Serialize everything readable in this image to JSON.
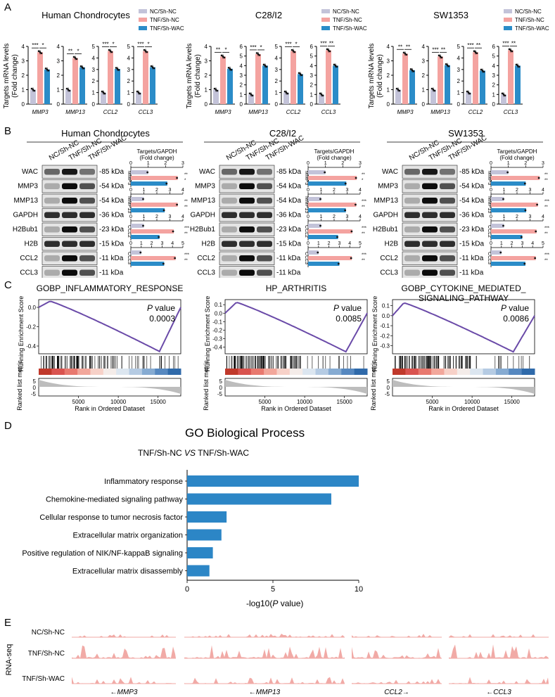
{
  "colors": {
    "nc": "#c3c3d9",
    "tnf_nc": "#f4a3a0",
    "tnf_wac": "#2b8cc8",
    "gsea_line": "#6a4aa8",
    "go_bar": "#2c86c6",
    "track": "#f1aaa6"
  },
  "panels": {
    "a": "A",
    "b": "B",
    "c": "C",
    "d": "D",
    "e": "E"
  },
  "legend": [
    "NC/Sh-NC",
    "TNF/Sh-NC",
    "TNF/Sh-WAC"
  ],
  "panelA": {
    "ylabel_line1": "Targets mRNA levels",
    "ylabel_line2": "(Fold change)",
    "groups": [
      {
        "title": "Human Chondrocytes",
        "charts": [
          {
            "gene": "MMP3",
            "ymax": 4,
            "ticks": [
              "0",
              "1",
              "2",
              "3",
              "4"
            ],
            "values": [
              1,
              3.6,
              2.4
            ],
            "sig": [
              "***",
              "*"
            ]
          },
          {
            "gene": "MMP13",
            "ymax": 4,
            "ticks": [
              "0",
              "1",
              "2",
              "3",
              "4"
            ],
            "values": [
              1,
              3.2,
              2.55
            ],
            "sig": [
              "**",
              "*"
            ]
          },
          {
            "gene": "CCL2",
            "ymax": 5,
            "ticks": [
              "0",
              "1",
              "2",
              "3",
              "4",
              "5"
            ],
            "values": [
              1,
              4.6,
              3.05
            ],
            "sig": [
              "***",
              "*"
            ]
          },
          {
            "gene": "CCL3",
            "ymax": 5,
            "ticks": [
              "0",
              "1",
              "2",
              "3",
              "4",
              "5"
            ],
            "values": [
              1,
              4.6,
              3.2
            ],
            "sig": [
              "***",
              "*"
            ]
          }
        ]
      },
      {
        "title": "C28/I2",
        "charts": [
          {
            "gene": "MMP3",
            "ymax": 4,
            "ticks": [
              "0",
              "1",
              "2",
              "3",
              "4"
            ],
            "values": [
              1,
              3.3,
              2.45
            ],
            "sig": [
              "**",
              "*"
            ]
          },
          {
            "gene": "MMP13",
            "ymax": 6,
            "ticks": [
              "0",
              "1",
              "2",
              "3",
              "4",
              "5",
              "6"
            ],
            "values": [
              1,
              5.2,
              4.0
            ],
            "sig": [
              "***",
              "*"
            ]
          },
          {
            "gene": "CCL2",
            "ymax": 5,
            "ticks": [
              "0",
              "1",
              "2",
              "3",
              "4",
              "5"
            ],
            "values": [
              1,
              4.6,
              2.6
            ],
            "sig": [
              "***",
              "*"
            ]
          },
          {
            "gene": "CCL3",
            "ymax": 6,
            "ticks": [
              "0",
              "1",
              "2",
              "3",
              "4",
              "5",
              "6"
            ],
            "values": [
              1,
              5.6,
              4.0
            ],
            "sig": [
              "***",
              "**"
            ]
          }
        ]
      },
      {
        "title": "SW1353",
        "charts": [
          {
            "gene": "MMP3",
            "ymax": 4,
            "ticks": [
              "0",
              "1",
              "2",
              "3",
              "4"
            ],
            "values": [
              1,
              3.5,
              2.35
            ],
            "sig": [
              "**",
              "**"
            ]
          },
          {
            "gene": "MMP13",
            "ymax": 4,
            "ticks": [
              "0",
              "1",
              "2",
              "3",
              "4"
            ],
            "values": [
              1,
              3.3,
              2.7
            ],
            "sig": [
              "***",
              "**"
            ]
          },
          {
            "gene": "CCL2",
            "ymax": 5,
            "ticks": [
              "0",
              "1",
              "2",
              "3",
              "4",
              "5"
            ],
            "values": [
              1,
              4.5,
              2.9
            ],
            "sig": [
              "***",
              "**"
            ]
          },
          {
            "gene": "CCL3",
            "ymax": 6,
            "ticks": [
              "0",
              "1",
              "2",
              "3",
              "4",
              "5",
              "6"
            ],
            "values": [
              1,
              5.6,
              4.0
            ],
            "sig": [
              "***",
              "**"
            ]
          }
        ]
      }
    ]
  },
  "panelB": {
    "lanes": [
      "NC/Sh-NC",
      "TNF/Sh-NC",
      "TNF/Sh-WAC"
    ],
    "quant_title_line1": "Targets/GAPDH",
    "quant_title_line2": "(Fold change)",
    "groups": [
      {
        "title": "Human Chondrocytes",
        "blots": [
          {
            "name": "WAC",
            "kda": "-85 kDa"
          },
          {
            "name": "MMP3",
            "kda": "-54 kDa"
          },
          {
            "name": "MMP13",
            "kda": "-54 kDa"
          },
          {
            "name": "GAPDH",
            "kda": "-36 kDa"
          },
          {
            "name": "H2Bub1",
            "kda": "-23 kDa"
          },
          {
            "name": "H2B",
            "kda": "-15 kDa"
          },
          {
            "name": "CCL2",
            "kda": "-11 kDa"
          },
          {
            "name": "CCL3",
            "kda": "-11 kDa"
          }
        ],
        "quant": [
          {
            "gene": "MMP3",
            "ticks": [
              "0",
              "1",
              "2",
              "3"
            ],
            "max": 3,
            "values": [
              1,
              2.7,
              2.1
            ],
            "sig": [
              "**",
              "*"
            ]
          },
          {
            "gene": "MMP13",
            "ticks": [
              "0",
              "1",
              "2",
              "3",
              "4"
            ],
            "max": 4,
            "values": [
              1,
              3.6,
              2.6
            ],
            "sig": [
              "**",
              "**"
            ]
          },
          {
            "gene": "CCL2",
            "ticks": [
              "0",
              "1",
              "2",
              "3",
              "4"
            ],
            "max": 4,
            "values": [
              1,
              3.3,
              2.2
            ],
            "sig": [
              "***",
              "**"
            ]
          },
          {
            "gene": "CCL3",
            "ticks": [
              "0",
              "1",
              "2",
              "3",
              "4",
              "5"
            ],
            "max": 5,
            "values": [
              1,
              4.3,
              3.2
            ],
            "sig": [
              "***",
              "**"
            ]
          }
        ]
      },
      {
        "title": "C28/I2",
        "blots": [
          {
            "name": "WAC",
            "kda": "-85 kDa"
          },
          {
            "name": "MMP3",
            "kda": "-54 kDa"
          },
          {
            "name": "MMP13",
            "kda": "-54 kDa"
          },
          {
            "name": "GAPDH",
            "kda": "-36 kDa"
          },
          {
            "name": "H2Bub1",
            "kda": "-23 kDa"
          },
          {
            "name": "H2B",
            "kda": "-15 kDa"
          },
          {
            "name": "CCL2",
            "kda": "-11 kDa"
          },
          {
            "name": "CCL3",
            "kda": "-11 kDa"
          }
        ],
        "quant": [
          {
            "gene": "MMP3",
            "ticks": [
              "0",
              "1",
              "2",
              "3"
            ],
            "max": 3,
            "values": [
              1,
              2.8,
              2.2
            ],
            "sig": [
              "**",
              "*"
            ]
          },
          {
            "gene": "MMP13",
            "ticks": [
              "0",
              "1",
              "2",
              "3",
              "4"
            ],
            "max": 4,
            "values": [
              1,
              3.7,
              2.9
            ],
            "sig": [
              "***",
              "**"
            ]
          },
          {
            "gene": "CCL2",
            "ticks": [
              "0",
              "1",
              "2",
              "3",
              "4"
            ],
            "max": 4,
            "values": [
              1,
              3.4,
              2.3
            ],
            "sig": [
              "***",
              "**"
            ]
          },
          {
            "gene": "CCL3",
            "ticks": [
              "0",
              "1",
              "2",
              "3",
              "4",
              "5"
            ],
            "max": 5,
            "values": [
              1,
              4.2,
              3.0
            ],
            "sig": [
              "***",
              "**"
            ]
          }
        ]
      },
      {
        "title": "SW1353",
        "blots": [
          {
            "name": "WAC",
            "kda": "-85 kDa"
          },
          {
            "name": "MMP3",
            "kda": "-54 kDa"
          },
          {
            "name": "MMP13",
            "kda": "-54 kDa"
          },
          {
            "name": "GAPDH",
            "kda": "-36 kDa"
          },
          {
            "name": "H2Bub1",
            "kda": "-23 kDa"
          },
          {
            "name": "H2B",
            "kda": "-15 kDa"
          },
          {
            "name": "CCL2",
            "kda": "-11 kDa"
          },
          {
            "name": "CCL3",
            "kda": "-11 kDa"
          }
        ],
        "quant": [
          {
            "gene": "MMP3",
            "ticks": [
              "0",
              "1",
              "2",
              "3"
            ],
            "max": 3,
            "values": [
              1,
              2.8,
              2.0
            ],
            "sig": [
              "**",
              "**"
            ]
          },
          {
            "gene": "MMP13",
            "ticks": [
              "0",
              "1",
              "2",
              "3",
              "4"
            ],
            "max": 4,
            "values": [
              1,
              3.6,
              2.7
            ],
            "sig": [
              "***",
              "**"
            ]
          },
          {
            "gene": "CCL2",
            "ticks": [
              "0",
              "1",
              "2",
              "3",
              "4"
            ],
            "max": 4,
            "values": [
              1,
              3.5,
              2.4
            ],
            "sig": [
              "***",
              "**"
            ]
          },
          {
            "gene": "CCL3",
            "ticks": [
              "0",
              "1",
              "2",
              "3",
              "4",
              "5"
            ],
            "max": 5,
            "values": [
              1,
              4.3,
              3.3
            ],
            "sig": [
              "***",
              "**"
            ]
          }
        ]
      }
    ]
  },
  "panelC": {
    "ylabel_top": "Running Enrichment Score",
    "ylabel_bottom": "Ranked list metric",
    "xlabel": "Rank in Ordered Dataset",
    "xticks": [
      "5000",
      "10000",
      "15000"
    ],
    "metric_ticks": [
      "5",
      "0",
      "-5"
    ],
    "p_label": "P",
    "p_suffix": " value",
    "plots": [
      {
        "title_line1": "GOBP_INFLAMMATORY_RESPONSE",
        "title_line2": "",
        "p": "0.0003",
        "yticks": [
          "0.0",
          "-0.2",
          "-0.4"
        ],
        "ymin": -0.48,
        "ymax": 0.08
      },
      {
        "title_line1": "HP_ARTHRITIS",
        "title_line2": "",
        "p": "0.0085",
        "yticks": [
          "0.1",
          "0.0",
          "-0.1",
          "-0.2",
          "-0.3",
          "-0.4"
        ],
        "ymin": -0.48,
        "ymax": 0.16
      },
      {
        "title_line1": "GOBP_CYTOKINE_MEDIATED_",
        "title_line2": "SIGNALING_PATHWAY",
        "p": "0.0086",
        "yticks": [
          "0.1",
          "0.0",
          "-0.1",
          "-0.2",
          "-0.3"
        ],
        "ymin": -0.38,
        "ymax": 0.16
      }
    ]
  },
  "chart_data": {
    "type": "bar",
    "orientation": "horizontal",
    "title": "GO Biological Process",
    "subtitle_left": "TNF/Sh-NC ",
    "subtitle_vs": "VS",
    "subtitle_right": " TNF/Sh-WAC",
    "categories": [
      "Inflammatory response",
      "Chemokine-mediated signaling pathway",
      "Cellular response to tumor necrosis factor",
      "Extracellular matrix organization",
      "Positive regulation of NIK/NF-kappaB signaling",
      "Extracellular matrix disassembly"
    ],
    "values": [
      10.0,
      8.4,
      2.3,
      2.0,
      1.5,
      1.3
    ],
    "xlabel_prefix": "-log10(",
    "xlabel_p": "P",
    "xlabel_suffix": " value)",
    "xticks": [
      "0",
      "5",
      "10"
    ],
    "xlim": [
      0,
      10
    ]
  },
  "panelE": {
    "ylabel": "RNA-seq",
    "tracks": [
      "NC/Sh-NC",
      "TNF/Sh-NC",
      "TNF/Sh-WAC"
    ],
    "genes": [
      "←MMP3",
      "←MMP13",
      "CCL2→",
      "←CCL3"
    ]
  }
}
